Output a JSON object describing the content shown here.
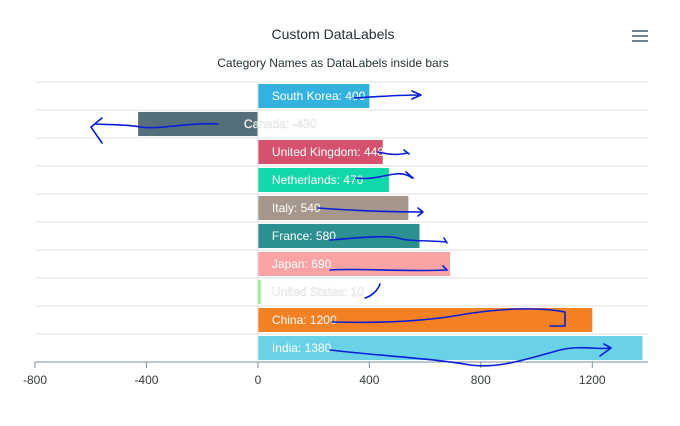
{
  "header": {
    "title": "Custom DataLabels",
    "subtitle": "Category Names as DataLabels inside bars",
    "menu_icon": "hamburger-menu-icon"
  },
  "chart_data": {
    "type": "bar",
    "orientation": "horizontal",
    "title": "Custom DataLabels",
    "subtitle": "Category Names as DataLabels inside bars",
    "categories": [
      "South Korea",
      "Canada",
      "United Kingdom",
      "Netherlands",
      "Italy",
      "France",
      "Japan",
      "United States",
      "China",
      "India"
    ],
    "values": [
      400,
      -430,
      448,
      470,
      540,
      580,
      690,
      10,
      1200,
      1380
    ],
    "data_labels": [
      "South Korea: 400",
      "Canada: -430",
      "United Kingdom: 448",
      "Netherlands: 470",
      "Italy: 540",
      "France: 580",
      "Japan: 690",
      "United States: 10",
      "China: 1200",
      "India: 1380"
    ],
    "colors": [
      "#33b2df",
      "#546E7A",
      "#d4526e",
      "#13d8aa",
      "#A5978B",
      "#2b908f",
      "#f9a3a4",
      "#90ee7e",
      "#f48024",
      "#69d2e7"
    ],
    "xlim": [
      -800,
      1400
    ],
    "x_ticks": [
      "-800",
      "-400",
      "0",
      "400",
      "800",
      "1200"
    ],
    "x_tick_values": [
      -800,
      -400,
      0,
      400,
      800,
      1200
    ],
    "grid": true,
    "legend": "none",
    "annotations": "hand-drawn blue arrows over each bar"
  }
}
